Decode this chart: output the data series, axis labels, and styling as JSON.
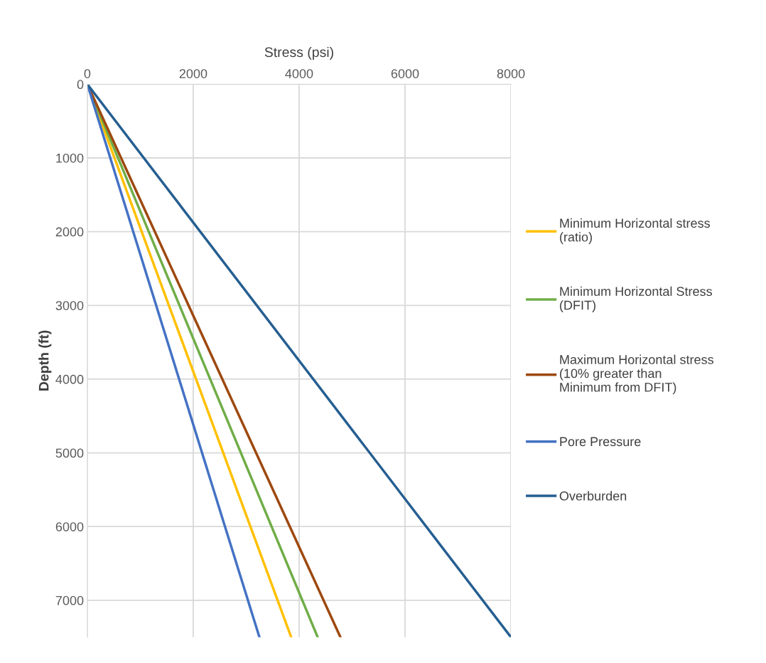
{
  "chart_data": {
    "type": "line",
    "xlabel": "Stress (psi)",
    "ylabel": "Depth (ft)",
    "xlim": [
      0,
      8000
    ],
    "xticks": [
      0,
      2000,
      4000,
      6000,
      8000
    ],
    "ylim": [
      7500,
      0
    ],
    "yticks": [
      0,
      1000,
      2000,
      3000,
      4000,
      5000,
      6000,
      7000
    ],
    "grid": true,
    "legend": "right",
    "marker": "none",
    "line_style": "solid",
    "series": [
      {
        "name": "Minimum Horizontal stress\n(ratio)",
        "color": "#ffc000",
        "x": [
          0,
          3850
        ],
        "values": [
          0,
          7500
        ]
      },
      {
        "name": "Minimum Horizontal Stress\n(DFIT)",
        "color": "#70ad47",
        "x": [
          0,
          4350
        ],
        "values": [
          0,
          7500
        ]
      },
      {
        "name": "Maximum Horizontal stress\n(10% greater than\nMinimum from DFIT)",
        "color": "#9e480e",
        "x": [
          0,
          4780
        ],
        "values": [
          0,
          7500
        ]
      },
      {
        "name": "Pore Pressure",
        "color": "#4472c4",
        "x": [
          0,
          3250
        ],
        "values": [
          0,
          7500
        ]
      },
      {
        "name": "Overburden",
        "color": "#255e91",
        "x": [
          0,
          8000
        ],
        "values": [
          0,
          7500
        ]
      }
    ]
  }
}
